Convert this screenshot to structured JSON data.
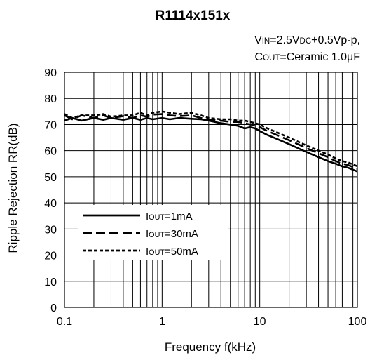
{
  "chart_data": {
    "type": "line",
    "title": "R1114x151x",
    "conditions": {
      "line1": {
        "parts": [
          {
            "text": "V",
            "small": false
          },
          {
            "text": "IN",
            "small": true
          },
          {
            "text": "=2.5V",
            "small": false
          },
          {
            "text": "DC",
            "small": true
          },
          {
            "text": "+0.5Vp-p,",
            "small": false
          }
        ]
      },
      "line2": {
        "parts": [
          {
            "text": "C",
            "small": false
          },
          {
            "text": "OUT",
            "small": true
          },
          {
            "text": "=Ceramic 1.0",
            "small": false
          },
          {
            "text": "μ",
            "small": false
          },
          {
            "text": "F",
            "small": false
          }
        ]
      }
    },
    "xlabel": "Frequency f(kHz)",
    "ylabel": "Ripple Rejection RR(dB)",
    "xscale": "log",
    "xlim": [
      0.1,
      100
    ],
    "ylim": [
      0,
      90
    ],
    "xticks": [
      {
        "value": 0.1,
        "label": "0.1"
      },
      {
        "value": 1,
        "label": "1"
      },
      {
        "value": 10,
        "label": "10"
      },
      {
        "value": 100,
        "label": "100"
      }
    ],
    "yticks": [
      0,
      10,
      20,
      30,
      40,
      50,
      60,
      70,
      80,
      90
    ],
    "grid": true,
    "legend_position": "bottom-left",
    "series": [
      {
        "name": "IOUT=1mA",
        "name_parts": [
          {
            "text": "I",
            "small": false
          },
          {
            "text": "OUT",
            "small": true
          },
          {
            "text": "=1mA",
            "small": false
          }
        ],
        "style": "solid",
        "x": [
          0.1,
          0.12,
          0.15,
          0.2,
          0.25,
          0.3,
          0.4,
          0.5,
          0.6,
          0.7,
          0.8,
          1.0,
          1.2,
          1.5,
          2,
          2.5,
          3,
          4,
          5,
          6,
          7,
          8,
          9,
          10,
          12,
          15,
          20,
          30,
          40,
          50,
          60,
          70,
          80,
          100
        ],
        "y": [
          71.5,
          72.5,
          71.5,
          72.5,
          71.8,
          72.5,
          71.8,
          72.5,
          71.8,
          72.5,
          72,
          72.5,
          72,
          72.5,
          72.2,
          72,
          71.5,
          70.5,
          70,
          69.5,
          68.5,
          69,
          68.5,
          67.5,
          66,
          64.5,
          62.5,
          59.5,
          57.5,
          56,
          55,
          54,
          53.5,
          52
        ]
      },
      {
        "name": "IOUT=30mA",
        "name_parts": [
          {
            "text": "I",
            "small": false
          },
          {
            "text": "OUT",
            "small": true
          },
          {
            "text": "=30mA",
            "small": false
          }
        ],
        "style": "long-dash",
        "x": [
          0.1,
          0.12,
          0.15,
          0.2,
          0.25,
          0.3,
          0.4,
          0.5,
          0.6,
          0.7,
          0.8,
          1.0,
          1.2,
          1.5,
          2,
          2.5,
          3,
          4,
          5,
          6,
          7,
          8,
          9,
          10,
          12,
          15,
          20,
          30,
          40,
          50,
          60,
          70,
          80,
          100
        ],
        "y": [
          73.5,
          72,
          73.5,
          72.5,
          73.5,
          72.5,
          73.2,
          72.5,
          73.5,
          73,
          73.8,
          74,
          73.5,
          73.2,
          73.5,
          72.5,
          72,
          71.5,
          71,
          71,
          70.5,
          70,
          69.8,
          69,
          67.5,
          66,
          64,
          61,
          59,
          57.5,
          56,
          55,
          54.5,
          53
        ]
      },
      {
        "name": "IOUT=50mA",
        "name_parts": [
          {
            "text": "I",
            "small": false
          },
          {
            "text": "OUT",
            "small": true
          },
          {
            "text": "=50mA",
            "small": false
          }
        ],
        "style": "short-dash",
        "x": [
          0.1,
          0.12,
          0.15,
          0.2,
          0.25,
          0.3,
          0.4,
          0.5,
          0.6,
          0.7,
          0.8,
          1.0,
          1.2,
          1.5,
          2,
          2.5,
          3,
          4,
          5,
          6,
          7,
          8,
          9,
          10,
          12,
          15,
          20,
          30,
          40,
          50,
          60,
          70,
          80,
          100
        ],
        "y": [
          74,
          72.5,
          73.5,
          73.5,
          74,
          73,
          73.5,
          73.5,
          74.5,
          73.5,
          74.5,
          75,
          74.5,
          74,
          74.5,
          73.5,
          72.5,
          72,
          72,
          71.5,
          71.5,
          71,
          70.5,
          70,
          68.5,
          67,
          65,
          62,
          60,
          58.5,
          57,
          56,
          55.5,
          54
        ]
      }
    ]
  }
}
